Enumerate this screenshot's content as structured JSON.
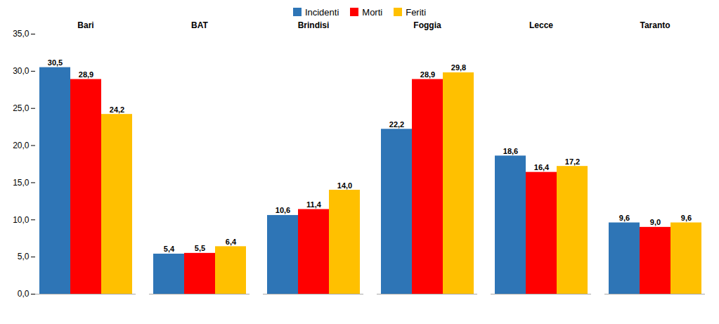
{
  "chart_data": {
    "type": "bar",
    "categories": [
      "Bari",
      "BAT",
      "Brindisi",
      "Foggia",
      "Lecce",
      "Taranto"
    ],
    "series": [
      {
        "name": "Incidenti",
        "color": "#2E75B6",
        "values": [
          30.5,
          5.4,
          10.6,
          22.2,
          18.6,
          9.6
        ],
        "value_labels": [
          "30,5",
          "5,4",
          "10,6",
          "22,2",
          "18,6",
          "9,6"
        ]
      },
      {
        "name": "Morti",
        "color": "#FF0000",
        "values": [
          28.9,
          5.5,
          11.4,
          28.9,
          16.4,
          9.0
        ],
        "value_labels": [
          "28,9",
          "5,5",
          "11,4",
          "28,9",
          "16,4",
          "9,0"
        ]
      },
      {
        "name": "Feriti",
        "color": "#FFC000",
        "values": [
          24.2,
          6.4,
          14.0,
          29.8,
          17.2,
          9.6
        ],
        "value_labels": [
          "24,2",
          "6,4",
          "14,0",
          "29,8",
          "17,2",
          "9,6"
        ]
      }
    ],
    "ylim": [
      0,
      35
    ],
    "yticks": [
      {
        "value": 0,
        "label": "0,0"
      },
      {
        "value": 5,
        "label": "5,0"
      },
      {
        "value": 10,
        "label": "10,0"
      },
      {
        "value": 15,
        "label": "15,0"
      },
      {
        "value": 20,
        "label": "20,0"
      },
      {
        "value": 25,
        "label": "25,0"
      },
      {
        "value": 30,
        "label": "30,0"
      },
      {
        "value": 35,
        "label": "35,0"
      }
    ],
    "grid": false,
    "legend": "upper center",
    "data_labels": true
  }
}
